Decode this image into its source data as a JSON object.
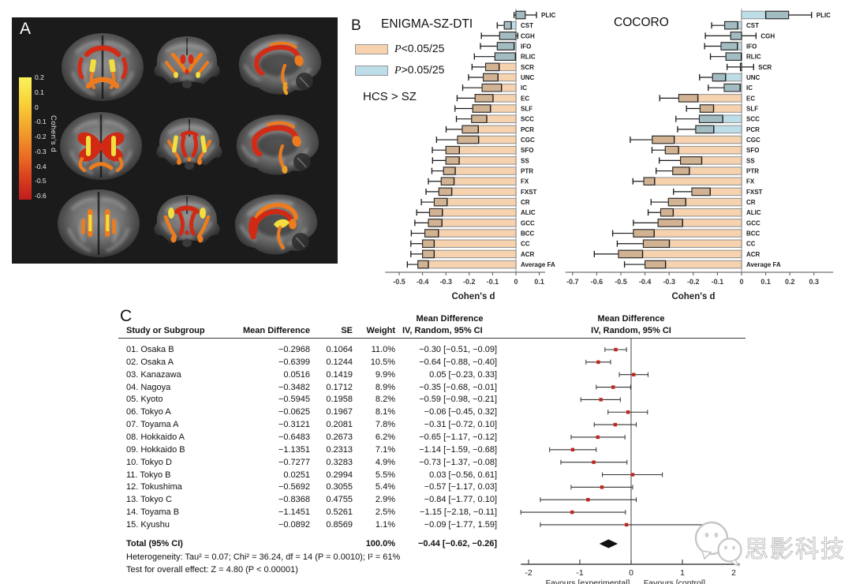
{
  "panelA": {
    "label": "A",
    "colorbar": {
      "title": "Cohen's d",
      "ticks": [
        "0.2",
        "0.1",
        "0",
        "-0.1",
        "-0.2",
        "-0.3",
        "-0.4",
        "-0.5",
        "-0.6"
      ],
      "top_color": "#f9f35c",
      "bottom_color": "#bf1d1d"
    }
  },
  "panelB": {
    "label": "B",
    "legend": [
      {
        "p": "P",
        "rest": "<0.05/25",
        "color": "#f6d2af"
      },
      {
        "p": "P",
        "rest": ">0.05/25",
        "color": "#bddee8"
      }
    ],
    "note": "HCS > SZ"
  },
  "panelC": {
    "label": "C",
    "headers": {
      "study": "Study or Subgroup",
      "md": "Mean Difference",
      "se": "SE",
      "weight": "Weight",
      "effect_line1": "Mean Difference",
      "effect_line2": "IV, Random, 95% CI",
      "forest_line1": "Mean Difference",
      "forest_line2": "IV, Random, 95% CI"
    },
    "footnotes": {
      "heterogeneity": "Heterogeneity: Tau² = 0.07; Chi² = 36.24, df = 14 (P = 0.0010); I² = 61%",
      "overall_effect": "Test for overall effect: Z = 4.80 (P < 0.00001)"
    }
  },
  "watermark": {
    "text": "思影科技"
  },
  "chart_data": [
    {
      "type": "bar",
      "title": "ENIGMA-SZ-DTI",
      "xlabel": "Cohen's d",
      "xlim": [
        -0.56,
        0.125
      ],
      "xticks": [
        "-0.5",
        "-0.4",
        "-0.3",
        "-0.2",
        "-0.1",
        "0",
        "0.1"
      ],
      "legend_note": "orange = P<0.05/25 significant, blue = P>0.05/25",
      "rows": [
        {
          "label": "PLIC",
          "d": 0.04,
          "ci": 0.048,
          "sig": false
        },
        {
          "label": "CST",
          "d": -0.05,
          "ci": 0.03,
          "sig": false
        },
        {
          "label": "CGH",
          "d": -0.07,
          "ci": 0.078,
          "sig": false
        },
        {
          "label": "IFO",
          "d": -0.08,
          "ci": 0.072,
          "sig": false
        },
        {
          "label": "RLIC",
          "d": -0.09,
          "ci": 0.088,
          "sig": false
        },
        {
          "label": "SCR",
          "d": -0.13,
          "ci": 0.058,
          "sig": true
        },
        {
          "label": "UNC",
          "d": -0.14,
          "ci": 0.063,
          "sig": true
        },
        {
          "label": "IC",
          "d": -0.145,
          "ci": 0.083,
          "sig": true
        },
        {
          "label": "EC",
          "d": -0.175,
          "ci": 0.077,
          "sig": true
        },
        {
          "label": "SLF",
          "d": -0.185,
          "ci": 0.076,
          "sig": true
        },
        {
          "label": "SCC",
          "d": -0.19,
          "ci": 0.065,
          "sig": true
        },
        {
          "label": "PCR",
          "d": -0.23,
          "ci": 0.069,
          "sig": true
        },
        {
          "label": "CGC",
          "d": -0.25,
          "ci": 0.09,
          "sig": true
        },
        {
          "label": "SFO",
          "d": -0.3,
          "ci": 0.058,
          "sig": true
        },
        {
          "label": "SS",
          "d": -0.3,
          "ci": 0.057,
          "sig": true
        },
        {
          "label": "PTR",
          "d": -0.31,
          "ci": 0.05,
          "sig": true
        },
        {
          "label": "FX",
          "d": -0.32,
          "ci": 0.055,
          "sig": true
        },
        {
          "label": "FXST",
          "d": -0.33,
          "ci": 0.055,
          "sig": true
        },
        {
          "label": "CR",
          "d": -0.35,
          "ci": 0.055,
          "sig": true
        },
        {
          "label": "ALIC",
          "d": -0.37,
          "ci": 0.055,
          "sig": true
        },
        {
          "label": "GCC",
          "d": -0.375,
          "ci": 0.058,
          "sig": true
        },
        {
          "label": "BCC",
          "d": -0.39,
          "ci": 0.058,
          "sig": true
        },
        {
          "label": "CC",
          "d": -0.4,
          "ci": 0.05,
          "sig": true
        },
        {
          "label": "ACR",
          "d": -0.4,
          "ci": 0.05,
          "sig": true
        },
        {
          "label": "Average FA",
          "d": -0.42,
          "ci": 0.045,
          "sig": true
        }
      ]
    },
    {
      "type": "bar",
      "title": "COCORO",
      "xlabel": "Cohen's d",
      "xlim": [
        -0.73,
        0.38
      ],
      "xticks": [
        "-0.7",
        "-0.6",
        "-0.5",
        "-0.4",
        "-0.3",
        "-0.2",
        "-0.1",
        "0",
        "0.1",
        "0.2",
        "0.3"
      ],
      "legend_note": "orange = P<0.05/25 significant, blue = P>0.05/25",
      "rows": [
        {
          "label": "PLIC",
          "d": 0.195,
          "ci": 0.095,
          "sig": false
        },
        {
          "label": "CST",
          "d": -0.07,
          "ci": 0.054,
          "sig": false
        },
        {
          "label": "CGH",
          "d": -0.045,
          "ci": 0.105,
          "sig": false
        },
        {
          "label": "IFO",
          "d": -0.085,
          "ci": 0.068,
          "sig": false
        },
        {
          "label": "RLIC",
          "d": -0.065,
          "ci": 0.064,
          "sig": false
        },
        {
          "label": "SCR",
          "d": -0.005,
          "ci": 0.055,
          "sig": false
        },
        {
          "label": "UNC",
          "d": -0.12,
          "ci": 0.054,
          "sig": false
        },
        {
          "label": "IC",
          "d": -0.072,
          "ci": 0.066,
          "sig": false
        },
        {
          "label": "EC",
          "d": -0.26,
          "ci": 0.079,
          "sig": true
        },
        {
          "label": "SLF",
          "d": -0.172,
          "ci": 0.056,
          "sig": true
        },
        {
          "label": "SCC",
          "d": -0.175,
          "ci": 0.097,
          "sig": false
        },
        {
          "label": "PCR",
          "d": -0.19,
          "ci": 0.075,
          "sig": false
        },
        {
          "label": "CGC",
          "d": -0.37,
          "ci": 0.091,
          "sig": true
        },
        {
          "label": "SFO",
          "d": -0.316,
          "ci": 0.055,
          "sig": true
        },
        {
          "label": "SS",
          "d": -0.253,
          "ci": 0.088,
          "sig": true
        },
        {
          "label": "PTR",
          "d": -0.285,
          "ci": 0.069,
          "sig": true
        },
        {
          "label": "FX",
          "d": -0.405,
          "ci": 0.045,
          "sig": true
        },
        {
          "label": "FXST",
          "d": -0.206,
          "ci": 0.076,
          "sig": true
        },
        {
          "label": "CR",
          "d": -0.303,
          "ci": 0.072,
          "sig": true
        },
        {
          "label": "ALIC",
          "d": -0.335,
          "ci": 0.052,
          "sig": true
        },
        {
          "label": "GCC",
          "d": -0.346,
          "ci": 0.102,
          "sig": true
        },
        {
          "label": "BCC",
          "d": -0.448,
          "ci": 0.086,
          "sig": true
        },
        {
          "label": "CC",
          "d": -0.407,
          "ci": 0.108,
          "sig": true
        },
        {
          "label": "ACR",
          "d": -0.51,
          "ci": 0.1,
          "sig": true
        },
        {
          "label": "Average FA",
          "d": -0.4,
          "ci": 0.085,
          "sig": true
        }
      ]
    },
    {
      "type": "forest",
      "xticks": [
        "-2",
        "-1",
        "0",
        "1",
        "2"
      ],
      "xlim": [
        -2.15,
        2.12
      ],
      "favours_left": "Favours [experimental]",
      "favours_right": "Favours [control]",
      "marker_color": "#c0261c",
      "studies": [
        {
          "study": "01. Osaka B",
          "md": "−0.2968",
          "se": "0.1064",
          "weight": "11.0%",
          "ci": "−0.30 [−0.51, −0.09]",
          "mean": -0.3,
          "lo": -0.51,
          "hi": -0.09
        },
        {
          "study": "02. Osaka A",
          "md": "−0.6399",
          "se": "0.1244",
          "weight": "10.5%",
          "ci": "−0.64 [−0.88, −0.40]",
          "mean": -0.64,
          "lo": -0.88,
          "hi": -0.4
        },
        {
          "study": "03. Kanazawa",
          "md": "0.0516",
          "se": "0.1419",
          "weight": "9.9%",
          "ci": "0.05 [−0.23, 0.33]",
          "mean": 0.05,
          "lo": -0.23,
          "hi": 0.33
        },
        {
          "study": "04. Nagoya",
          "md": "−0.3482",
          "se": "0.1712",
          "weight": "8.9%",
          "ci": "−0.35 [−0.68, −0.01]",
          "mean": -0.35,
          "lo": -0.68,
          "hi": -0.01
        },
        {
          "study": "05. Kyoto",
          "md": "−0.5945",
          "se": "0.1958",
          "weight": "8.2%",
          "ci": "−0.59 [−0.98, −0.21]",
          "mean": -0.59,
          "lo": -0.98,
          "hi": -0.21
        },
        {
          "study": "06. Tokyo A",
          "md": "−0.0625",
          "se": "0.1967",
          "weight": "8.1%",
          "ci": "−0.06 [−0.45, 0.32]",
          "mean": -0.06,
          "lo": -0.45,
          "hi": 0.32
        },
        {
          "study": "07. Toyama A",
          "md": "−0.3121",
          "se": "0.2081",
          "weight": "7.8%",
          "ci": "−0.31 [−0.72, 0.10]",
          "mean": -0.31,
          "lo": -0.72,
          "hi": 0.1
        },
        {
          "study": "08. Hokkaido A",
          "md": "−0.6483",
          "se": "0.2673",
          "weight": "6.2%",
          "ci": "−0.65 [−1.17, −0.12]",
          "mean": -0.65,
          "lo": -1.17,
          "hi": -0.12
        },
        {
          "study": "09. Hokkaido B",
          "md": "−1.1351",
          "se": "0.2313",
          "weight": "7.1%",
          "ci": "−1.14 [−1.59, −0.68]",
          "mean": -1.14,
          "lo": -1.59,
          "hi": -0.68
        },
        {
          "study": "10. Tokyo D",
          "md": "−0.7277",
          "se": "0.3283",
          "weight": "4.9%",
          "ci": "−0.73 [−1.37, −0.08]",
          "mean": -0.73,
          "lo": -1.37,
          "hi": -0.08
        },
        {
          "study": "11. Tokyo B",
          "md": "0.0251",
          "se": "0.2994",
          "weight": "5.5%",
          "ci": "0.03 [−0.56, 0.61]",
          "mean": 0.03,
          "lo": -0.56,
          "hi": 0.61
        },
        {
          "study": "12. Tokushima",
          "md": "−0.5692",
          "se": "0.3055",
          "weight": "5.4%",
          "ci": "−0.57 [−1.17, 0.03]",
          "mean": -0.57,
          "lo": -1.17,
          "hi": 0.03
        },
        {
          "study": "13. Tokyo C",
          "md": "−0.8368",
          "se": "0.4755",
          "weight": "2.9%",
          "ci": "−0.84 [−1.77, 0.10]",
          "mean": -0.84,
          "lo": -1.77,
          "hi": 0.1
        },
        {
          "study": "14. Toyama B",
          "md": "−1.1451",
          "se": "0.5261",
          "weight": "2.5%",
          "ci": "−1.15 [−2.18, −0.11]",
          "mean": -1.15,
          "lo": -2.18,
          "hi": -0.11
        },
        {
          "study": "15. Kyushu",
          "md": "−0.0892",
          "se": "0.8569",
          "weight": "1.1%",
          "ci": "−0.09 [−1.77, 1.59]",
          "mean": -0.09,
          "lo": -1.77,
          "hi": 1.59
        }
      ],
      "total": {
        "label": "Total (95% CI)",
        "weight": "100.0%",
        "ci": "−0.44 [−0.62, −0.26]",
        "mean": -0.44,
        "lo": -0.62,
        "hi": -0.26
      }
    }
  ]
}
